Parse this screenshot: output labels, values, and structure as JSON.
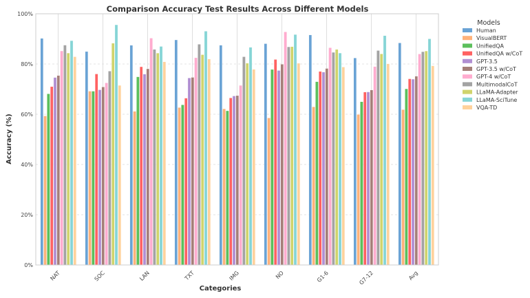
{
  "chart_data": {
    "type": "bar",
    "title": "Comparison Accuracy Test Results Across Different Models",
    "xlabel": "Categories",
    "ylabel": "Accuracy (%)",
    "ylim": [
      0,
      100
    ],
    "yticks": [
      "0%",
      "20%",
      "40%",
      "60%",
      "80%",
      "100%"
    ],
    "grid": true,
    "legend": {
      "title": "Models",
      "placement": "right-outside-top"
    },
    "categories": [
      "NAT",
      "SOC",
      "LAN",
      "TXT",
      "IMG",
      "NO",
      "G1-6",
      "G7-12",
      "Avg"
    ],
    "series": [
      {
        "name": "Human",
        "color": "#6aa3d5",
        "values": [
          90.23,
          84.97,
          87.48,
          89.6,
          87.5,
          88.1,
          91.59,
          82.42,
          88.4
        ]
      },
      {
        "name": "VisualBERT",
        "color": "#ffb27a",
        "values": [
          59.33,
          69.18,
          61.18,
          62.71,
          62.17,
          58.54,
          62.96,
          59.92,
          61.87
        ]
      },
      {
        "name": "UnifiedQA",
        "color": "#5cbf5c",
        "values": [
          68.16,
          69.18,
          74.91,
          63.78,
          61.38,
          77.84,
          72.98,
          65.0,
          70.12
        ]
      },
      {
        "name": "UnifiedQA w/CoT",
        "color": "#ff6262",
        "values": [
          71.0,
          76.04,
          78.91,
          66.42,
          66.53,
          81.81,
          77.06,
          68.82,
          74.11
        ]
      },
      {
        "name": "GPT-3.5",
        "color": "#b18fd2",
        "values": [
          74.64,
          69.74,
          76.0,
          74.44,
          67.28,
          77.42,
          76.8,
          68.89,
          73.97
        ]
      },
      {
        "name": "GPT-3.5 w/CoT",
        "color": "#a57f78",
        "values": [
          75.44,
          70.87,
          78.09,
          74.68,
          67.43,
          79.93,
          78.23,
          69.68,
          75.17
        ]
      },
      {
        "name": "GPT-4 w/CoT",
        "color": "#ffaccf",
        "values": [
          85.2,
          72.5,
          90.3,
          82.5,
          71.5,
          92.8,
          86.5,
          79.0,
          84.0
        ]
      },
      {
        "name": "MultimodalCoT",
        "color": "#a3a3a3",
        "values": [
          87.52,
          77.17,
          85.82,
          87.88,
          82.9,
          86.83,
          84.65,
          85.37,
          84.91
        ]
      },
      {
        "name": "LLaMA-Adapter",
        "color": "#d0d46c",
        "values": [
          84.37,
          88.3,
          84.36,
          83.72,
          80.32,
          86.9,
          85.83,
          84.05,
          85.19
        ]
      },
      {
        "name": "LLaMA-SciTune",
        "color": "#86d5d6",
        "values": [
          89.3,
          95.61,
          87.0,
          93.08,
          86.67,
          91.75,
          84.37,
          91.3,
          90.03
        ]
      },
      {
        "name": "VQA-TD",
        "color": "#ffd29c",
        "values": [
          82.9,
          71.5,
          80.9,
          82.0,
          77.9,
          80.3,
          78.8,
          80.1,
          79.3
        ]
      }
    ]
  }
}
